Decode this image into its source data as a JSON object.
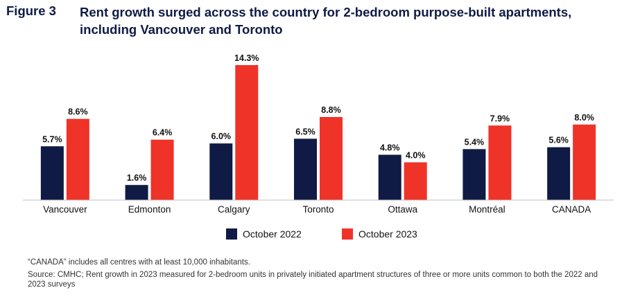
{
  "figure_label": "Figure 3",
  "title": "Rent growth surged across the country for 2-bedroom purpose-built apartments, including Vancouver and Toronto",
  "footnote": "“CANADA” includes all centres with at least 10,000 inhabitants.",
  "source": "Source: CMHC; Rent growth in 2023 measured for 2-bedroom units in privately initiated apartment structures of three or more units common to both the 2022 and 2023 surveys",
  "chart_data": {
    "type": "bar",
    "categories": [
      "Vancouver",
      "Edmonton",
      "Calgary",
      "Toronto",
      "Ottawa",
      "Montréal",
      "CANADA"
    ],
    "series": [
      {
        "name": "October 2022",
        "values": [
          5.7,
          1.6,
          6.0,
          6.5,
          4.8,
          5.4,
          5.6
        ],
        "labels": [
          "5.7%",
          "1.6%",
          "6.0%",
          "6.5%",
          "4.8%",
          "5.4%",
          "5.6%"
        ],
        "color": "#0f1b44"
      },
      {
        "name": "October 2023",
        "values": [
          8.6,
          6.4,
          14.3,
          8.8,
          4.0,
          7.9,
          8.0
        ],
        "labels": [
          "8.6%",
          "6.4%",
          "14.3%",
          "8.8%",
          "4.0%",
          "7.9%",
          "8.0%"
        ],
        "color": "#ef3328"
      }
    ],
    "ylim": [
      0,
      14.3
    ],
    "grid": false,
    "legend_position": "bottom"
  }
}
